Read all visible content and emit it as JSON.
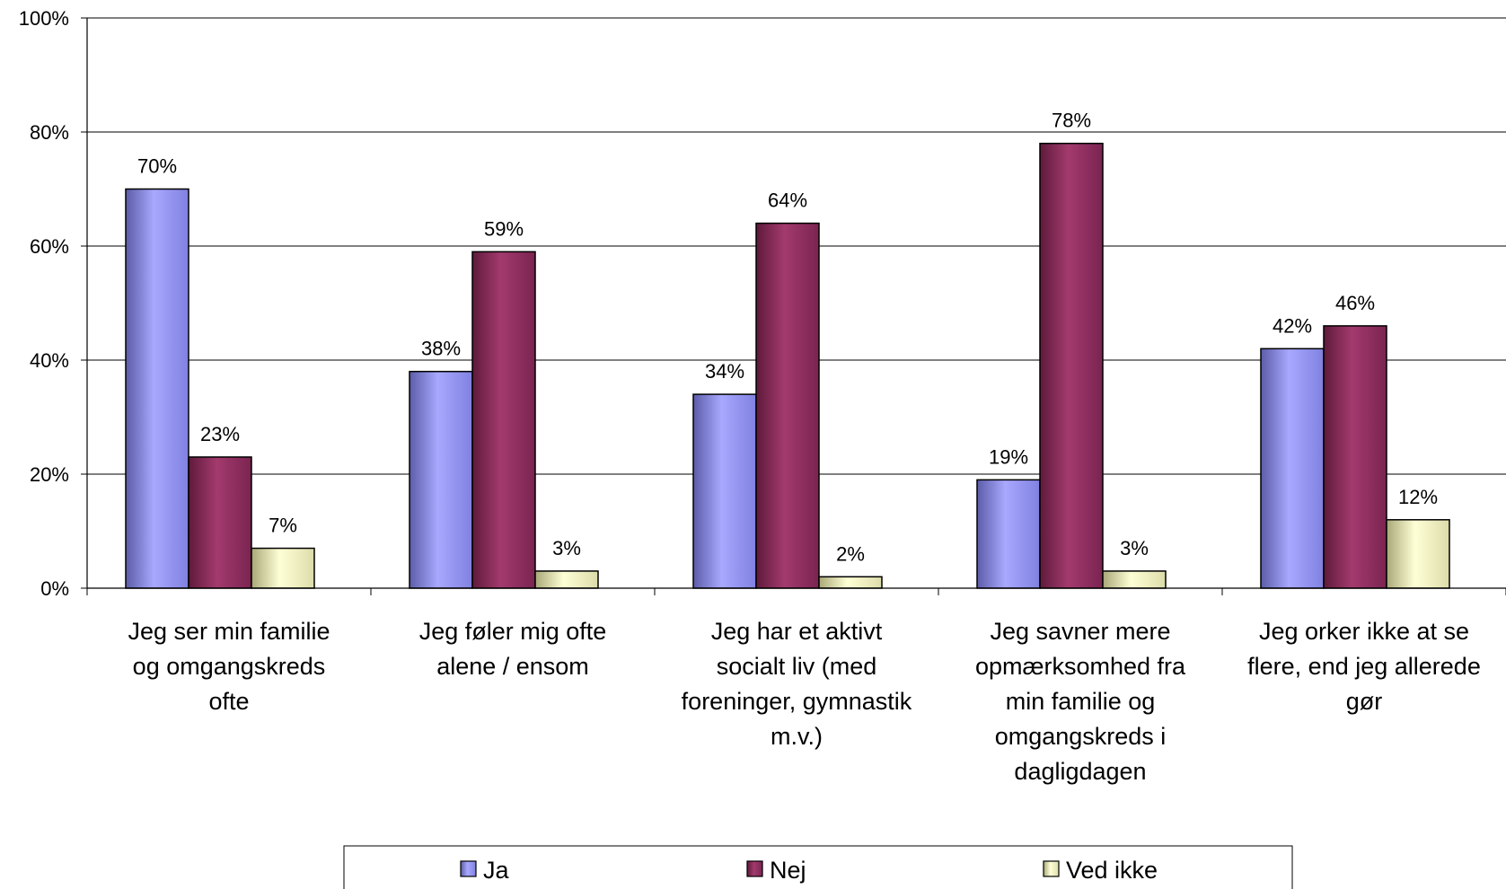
{
  "chart_data": {
    "type": "bar",
    "categories": [
      [
        "Jeg ser min familie",
        "og omgangskreds",
        "ofte"
      ],
      [
        "Jeg føler mig ofte",
        "alene / ensom"
      ],
      [
        "Jeg har et aktivt",
        "socialt liv (med",
        "foreninger, gymnastik",
        "m.v.)"
      ],
      [
        "Jeg savner mere",
        "opmærksomhed fra",
        "min familie og",
        "omgangskreds i",
        "dagligdagen"
      ],
      [
        "Jeg orker ikke at se",
        "flere, end jeg allerede",
        "gør"
      ]
    ],
    "series": [
      {
        "name": "Ja",
        "color": "#9999ff",
        "values": [
          70,
          38,
          34,
          19,
          42
        ],
        "labels": [
          "70%",
          "38%",
          "34%",
          "19%",
          "42%"
        ]
      },
      {
        "name": "Nej",
        "color": "#993366",
        "values": [
          23,
          59,
          64,
          78,
          46
        ],
        "labels": [
          "23%",
          "59%",
          "64%",
          "78%",
          "46%"
        ]
      },
      {
        "name": "Ved ikke",
        "color": "#ffffcc",
        "values": [
          7,
          3,
          2,
          3,
          12
        ],
        "labels": [
          "7%",
          "3%",
          "2%",
          "3%",
          "12%"
        ]
      }
    ],
    "ylim": [
      0,
      100
    ],
    "yticks": [
      0,
      20,
      40,
      60,
      80,
      100
    ],
    "ytick_labels": [
      "0%",
      "20%",
      "40%",
      "60%",
      "80%",
      "100%"
    ],
    "grid": true,
    "legend_position": "bottom"
  }
}
